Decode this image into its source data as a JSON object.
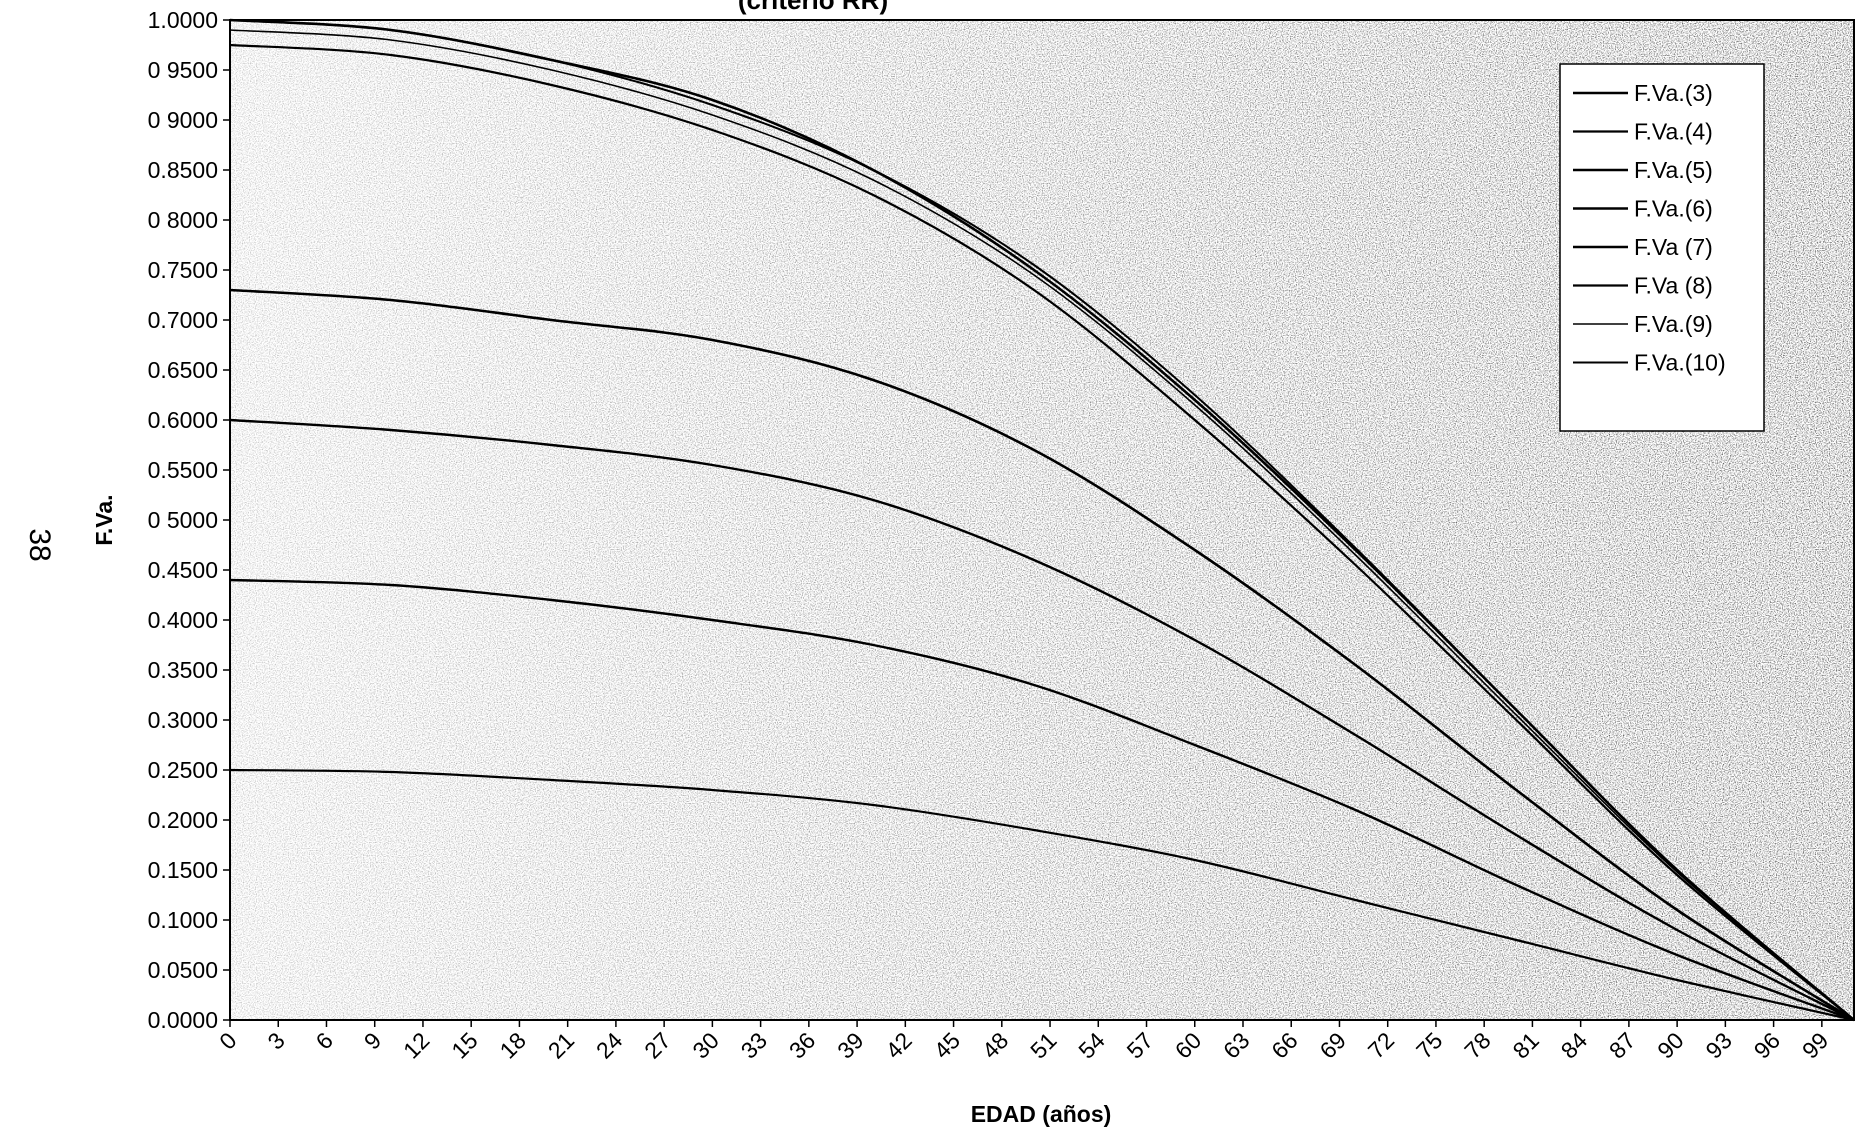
{
  "page": {
    "side_number": "38"
  },
  "chart_data": {
    "type": "line",
    "title": "(criterio RR)",
    "xlabel": "EDAD (años)",
    "ylabel": "F.Va.",
    "xlim": [
      0,
      101
    ],
    "ylim": [
      0,
      1
    ],
    "x_ticks": [
      0,
      3,
      6,
      9,
      12,
      15,
      18,
      21,
      24,
      27,
      30,
      33,
      36,
      39,
      42,
      45,
      48,
      51,
      54,
      57,
      60,
      63,
      66,
      69,
      72,
      75,
      78,
      81,
      84,
      87,
      90,
      93,
      96,
      99
    ],
    "y_ticks": [
      {
        "value": 0.0,
        "label": "0.0000"
      },
      {
        "value": 0.05,
        "label": "0.0500"
      },
      {
        "value": 0.1,
        "label": "0.1000"
      },
      {
        "value": 0.15,
        "label": "0.1500"
      },
      {
        "value": 0.2,
        "label": "0.2000"
      },
      {
        "value": 0.25,
        "label": "0.2500"
      },
      {
        "value": 0.3,
        "label": "0.3000"
      },
      {
        "value": 0.35,
        "label": "0.3500"
      },
      {
        "value": 0.4,
        "label": "0.4000"
      },
      {
        "value": 0.45,
        "label": "0.4500"
      },
      {
        "value": 0.5,
        "label": "0 5000"
      },
      {
        "value": 0.55,
        "label": "0.5500"
      },
      {
        "value": 0.6,
        "label": "0.6000"
      },
      {
        "value": 0.65,
        "label": "0.6500"
      },
      {
        "value": 0.7,
        "label": "0.7000"
      },
      {
        "value": 0.75,
        "label": "0.7500"
      },
      {
        "value": 0.8,
        "label": "0 8000"
      },
      {
        "value": 0.85,
        "label": "0.8500"
      },
      {
        "value": 0.9,
        "label": "0 9000"
      },
      {
        "value": 0.95,
        "label": "0 9500"
      },
      {
        "value": 1.0,
        "label": "1.0000"
      }
    ],
    "legend_position": "top-right",
    "grid": false,
    "series": [
      {
        "name": "F.Va.(3)",
        "x": [
          0,
          10,
          20,
          30,
          40,
          50,
          60,
          70,
          80,
          90,
          101
        ],
        "values": [
          1.0,
          0.99,
          0.96,
          0.92,
          0.85,
          0.75,
          0.62,
          0.47,
          0.31,
          0.15,
          0.0
        ]
      },
      {
        "name": "F.Va.(4)",
        "x": [
          0,
          10,
          20,
          30,
          40,
          50,
          60,
          70,
          80,
          90,
          101
        ],
        "values": [
          0.975,
          0.965,
          0.935,
          0.89,
          0.825,
          0.73,
          0.6,
          0.455,
          0.3,
          0.145,
          0.0
        ]
      },
      {
        "name": "F.Va.(5)",
        "x": [
          0,
          10,
          20,
          30,
          40,
          50,
          60,
          70,
          80,
          90,
          101
        ],
        "values": [
          0.73,
          0.72,
          0.7,
          0.68,
          0.64,
          0.57,
          0.47,
          0.355,
          0.23,
          0.11,
          0.0
        ]
      },
      {
        "name": "F.Va.(6)",
        "x": [
          0,
          10,
          20,
          30,
          40,
          50,
          60,
          70,
          80,
          90,
          101
        ],
        "values": [
          0.6,
          0.59,
          0.575,
          0.555,
          0.52,
          0.46,
          0.38,
          0.285,
          0.185,
          0.09,
          0.0
        ]
      },
      {
        "name": "F.Va (7)",
        "x": [
          0,
          10,
          20,
          30,
          40,
          50,
          60,
          70,
          80,
          90,
          101
        ],
        "values": [
          0.44,
          0.435,
          0.42,
          0.4,
          0.375,
          0.335,
          0.275,
          0.21,
          0.135,
          0.065,
          0.0
        ]
      },
      {
        "name": "F.Va (8)",
        "x": [
          0,
          10,
          20,
          30,
          40,
          50,
          60,
          70,
          80,
          90,
          101
        ],
        "values": [
          0.25,
          0.248,
          0.24,
          0.23,
          0.215,
          0.19,
          0.16,
          0.12,
          0.08,
          0.04,
          0.0
        ]
      },
      {
        "name": "F.Va.(9)",
        "x": [
          0,
          10,
          20,
          30,
          40,
          50,
          60,
          70,
          80,
          90,
          101
        ],
        "values": [
          0.99,
          0.98,
          0.95,
          0.905,
          0.84,
          0.745,
          0.615,
          0.465,
          0.305,
          0.148,
          0.0
        ]
      },
      {
        "name": "F.Va.(10)",
        "x": [
          0,
          10,
          20,
          30,
          40,
          50,
          60,
          70,
          80,
          90,
          101
        ],
        "values": [
          1.0,
          0.99,
          0.96,
          0.915,
          0.85,
          0.755,
          0.625,
          0.472,
          0.31,
          0.15,
          0.0
        ]
      }
    ]
  }
}
